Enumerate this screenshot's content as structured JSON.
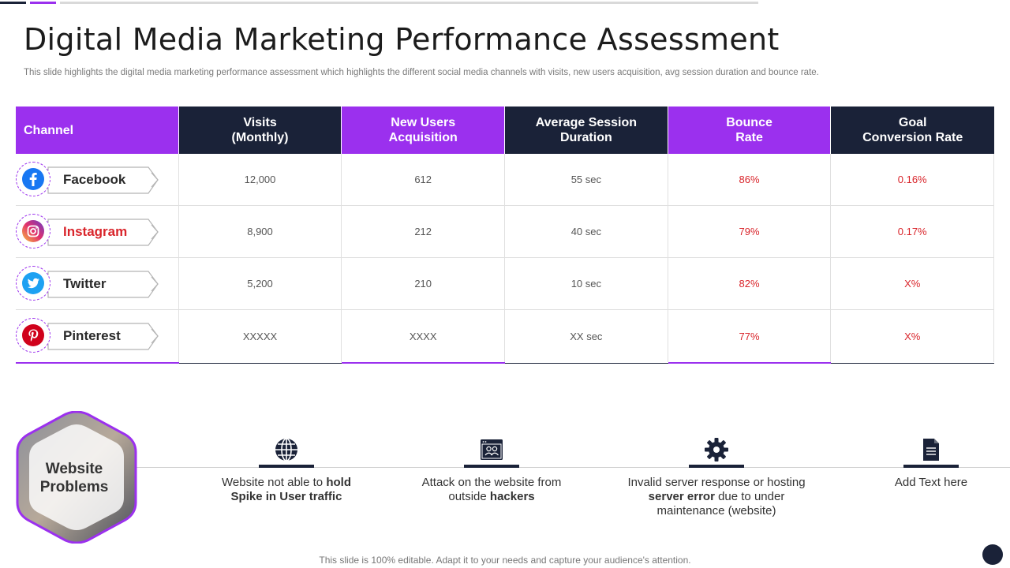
{
  "title": "Digital Media Marketing Performance Assessment",
  "subtitle": "This slide highlights the digital media marketing performance assessment which highlights the different social media channels with visits, new users acquisition, avg session duration and bounce rate.",
  "colors": {
    "purple": "#9b30ee",
    "navy": "#1a2238",
    "red": "#d9252b"
  },
  "table": {
    "headers": [
      "Channel",
      "Visits\n(Monthly)",
      "New Users\nAcquisition",
      "Average Session\nDuration",
      "Bounce\nRate",
      "Goal\nConversion Rate"
    ],
    "rows": [
      {
        "channel": "Facebook",
        "icon": "facebook-icon",
        "visits": "12,000",
        "new_users": "612",
        "session": "55 sec",
        "bounce": "86%",
        "goal": "0.16%"
      },
      {
        "channel": "Instagram",
        "icon": "instagram-icon",
        "visits": "8,900",
        "new_users": "212",
        "session": "40 sec",
        "bounce": "79%",
        "goal": "0.17%"
      },
      {
        "channel": "Twitter",
        "icon": "twitter-icon",
        "visits": "5,200",
        "new_users": "210",
        "session": "10 sec",
        "bounce": "82%",
        "goal": "X%"
      },
      {
        "channel": "Pinterest",
        "icon": "pinterest-icon",
        "visits": "XXXXX",
        "new_users": "XXXX",
        "session": "XX  sec",
        "bounce": "77%",
        "goal": "X%"
      }
    ]
  },
  "problems": {
    "heading": "Website\nProblems",
    "items": [
      {
        "icon": "globe-icon",
        "pre": "Website not able to ",
        "bold1": "hold",
        "mid": "",
        "bold2": "Spike in User traffic",
        "post": ""
      },
      {
        "icon": "browser-users-icon",
        "pre": "Attack on the website from",
        "bold1": "",
        "mid": "outside ",
        "bold2": "hackers",
        "post": ""
      },
      {
        "icon": "gear-icon",
        "pre": "Invalid  server response or hosting",
        "bold1": "server error",
        "mid": " due to under",
        "bold2": "",
        "post": "maintenance (website)"
      },
      {
        "icon": "document-icon",
        "pre": "Add Text here",
        "bold1": "",
        "mid": "",
        "bold2": "",
        "post": ""
      }
    ]
  },
  "footer": "This slide is 100% editable. Adapt it to your needs and capture your audience's attention."
}
